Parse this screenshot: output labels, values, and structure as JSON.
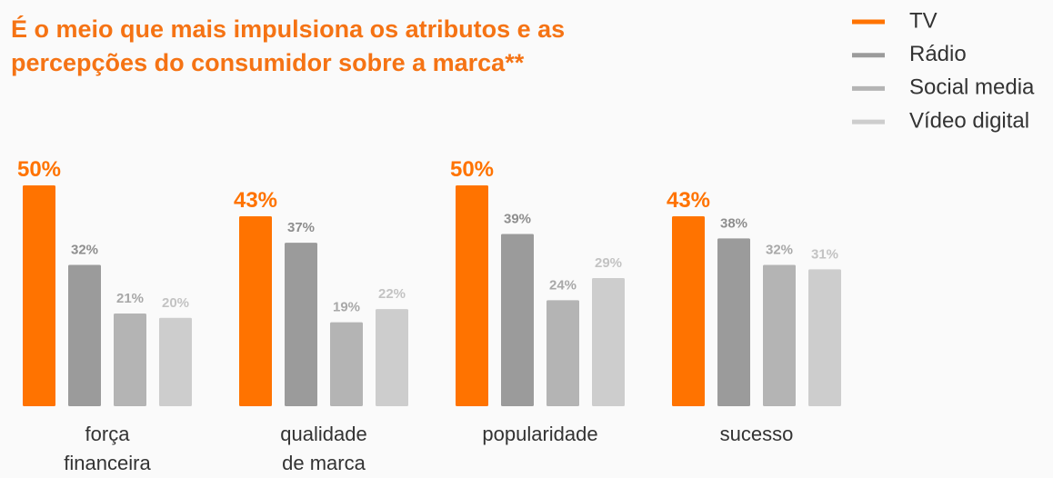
{
  "chart_data": {
    "type": "bar",
    "title": "É o meio que mais impulsiona os atributos e as percepções do consumidor sobre a marca**",
    "categories": [
      "força financeira",
      "qualidade de marca",
      "popularidade",
      "sucesso"
    ],
    "series": [
      {
        "name": "TV",
        "color": "#ff7300",
        "values": [
          50,
          43,
          50,
          43
        ],
        "value_labels": [
          "50%",
          "43%",
          "50%",
          "43%"
        ]
      },
      {
        "name": "Rádio",
        "color": "#9b9b9b",
        "values": [
          32,
          37,
          39,
          38
        ],
        "value_labels": [
          "32%",
          "37%",
          "39%",
          "38%"
        ]
      },
      {
        "name": "Social media",
        "color": "#b4b4b4",
        "values": [
          21,
          19,
          24,
          32
        ],
        "value_labels": [
          "21%",
          "19%",
          "24%",
          "32%"
        ]
      },
      {
        "name": "Vídeo digital",
        "color": "#cdcdcd",
        "values": [
          20,
          22,
          29,
          31
        ],
        "value_labels": [
          "20%",
          "22%",
          "29%",
          "31%"
        ]
      }
    ],
    "legend": "top-right"
  }
}
